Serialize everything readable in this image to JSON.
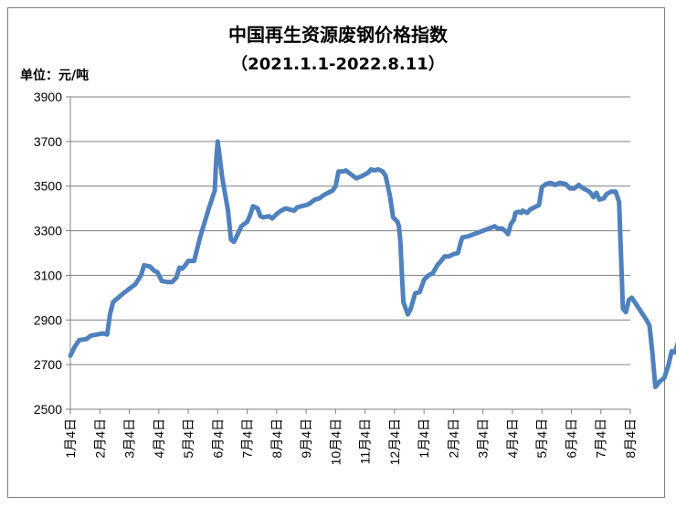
{
  "chart_data": {
    "type": "line",
    "title": "中国再生资源废钢价格指数",
    "subtitle": "（2021.1.1-2022.8.11）",
    "unit_label": "单位：元/吨",
    "xlabel": "",
    "ylabel": "",
    "ylim": [
      2500,
      3900
    ],
    "yticks": [
      "3900",
      "3700",
      "3500",
      "3300",
      "3100",
      "2900",
      "2700",
      "2500"
    ],
    "xticks": [
      "1月4日",
      "2月4日",
      "3月4日",
      "4月4日",
      "5月4日",
      "6月4日",
      "7月4日",
      "8月4日",
      "9月4日",
      "10月4日",
      "11月4日",
      "12月4日",
      "1月4日",
      "2月4日",
      "3月4日",
      "4月4日",
      "5月4日",
      "6月4日",
      "7月4日",
      "8月4日"
    ],
    "grid": true,
    "line_color": "#4f81bd",
    "series": [
      {
        "points": [
          [
            0.0,
            2740
          ],
          [
            0.15,
            2780
          ],
          [
            0.3,
            2810
          ],
          [
            0.55,
            2815
          ],
          [
            0.7,
            2830
          ],
          [
            0.9,
            2835
          ],
          [
            1.1,
            2840
          ],
          [
            1.25,
            2835
          ],
          [
            1.35,
            2930
          ],
          [
            1.45,
            2980
          ],
          [
            1.8,
            3020
          ],
          [
            2.2,
            3060
          ],
          [
            2.4,
            3100
          ],
          [
            2.5,
            3145
          ],
          [
            2.7,
            3140
          ],
          [
            2.85,
            3120
          ],
          [
            2.95,
            3115
          ],
          [
            3.1,
            3075
          ],
          [
            3.3,
            3070
          ],
          [
            3.45,
            3070
          ],
          [
            3.6,
            3090
          ],
          [
            3.7,
            3135
          ],
          [
            3.8,
            3130
          ],
          [
            3.9,
            3145
          ],
          [
            4.0,
            3165
          ],
          [
            4.2,
            3165
          ],
          [
            4.4,
            3270
          ],
          [
            4.7,
            3400
          ],
          [
            4.9,
            3480
          ],
          [
            4.95,
            3620
          ],
          [
            5.0,
            3700
          ],
          [
            5.05,
            3650
          ],
          [
            5.15,
            3540
          ],
          [
            5.35,
            3390
          ],
          [
            5.45,
            3260
          ],
          [
            5.55,
            3250
          ],
          [
            5.7,
            3290
          ],
          [
            5.8,
            3320
          ],
          [
            6.0,
            3340
          ],
          [
            6.1,
            3370
          ],
          [
            6.2,
            3410
          ],
          [
            6.35,
            3400
          ],
          [
            6.45,
            3365
          ],
          [
            6.55,
            3360
          ],
          [
            6.75,
            3365
          ],
          [
            6.85,
            3355
          ],
          [
            7.0,
            3375
          ],
          [
            7.15,
            3390
          ],
          [
            7.3,
            3400
          ],
          [
            7.45,
            3395
          ],
          [
            7.6,
            3390
          ],
          [
            7.7,
            3405
          ],
          [
            7.85,
            3410
          ],
          [
            8.0,
            3415
          ],
          [
            8.1,
            3420
          ],
          [
            8.3,
            3440
          ],
          [
            8.45,
            3445
          ],
          [
            8.6,
            3460
          ],
          [
            8.75,
            3470
          ],
          [
            8.9,
            3480
          ],
          [
            9.0,
            3500
          ],
          [
            9.1,
            3565
          ],
          [
            9.25,
            3565
          ],
          [
            9.35,
            3570
          ],
          [
            9.5,
            3555
          ],
          [
            9.7,
            3535
          ],
          [
            9.9,
            3545
          ],
          [
            10.1,
            3560
          ],
          [
            10.2,
            3575
          ],
          [
            10.3,
            3570
          ],
          [
            10.45,
            3575
          ],
          [
            10.6,
            3565
          ],
          [
            10.7,
            3545
          ],
          [
            10.85,
            3450
          ],
          [
            10.95,
            3360
          ],
          [
            11.1,
            3340
          ],
          [
            11.15,
            3320
          ],
          [
            11.2,
            3250
          ],
          [
            11.25,
            3100
          ],
          [
            11.3,
            2980
          ],
          [
            11.45,
            2925
          ],
          [
            11.55,
            2950
          ],
          [
            11.7,
            3020
          ],
          [
            11.85,
            3025
          ],
          [
            12.0,
            3080
          ],
          [
            12.15,
            3100
          ],
          [
            12.3,
            3110
          ],
          [
            12.45,
            3145
          ],
          [
            12.55,
            3160
          ],
          [
            12.7,
            3185
          ],
          [
            12.85,
            3185
          ],
          [
            13.0,
            3195
          ],
          [
            13.15,
            3200
          ],
          [
            13.25,
            3250
          ],
          [
            13.3,
            3270
          ],
          [
            13.5,
            3275
          ],
          [
            13.7,
            3285
          ],
          [
            13.9,
            3295
          ],
          [
            14.1,
            3305
          ],
          [
            14.3,
            3315
          ],
          [
            14.4,
            3320
          ],
          [
            14.5,
            3310
          ],
          [
            14.65,
            3310
          ],
          [
            14.75,
            3300
          ],
          [
            14.85,
            3285
          ],
          [
            14.95,
            3330
          ],
          [
            15.05,
            3350
          ],
          [
            15.1,
            3380
          ],
          [
            15.2,
            3385
          ],
          [
            15.3,
            3380
          ],
          [
            15.35,
            3390
          ],
          [
            15.5,
            3380
          ],
          [
            15.6,
            3395
          ],
          [
            15.75,
            3405
          ],
          [
            15.9,
            3415
          ],
          [
            16.0,
            3495
          ],
          [
            16.15,
            3510
          ],
          [
            16.3,
            3515
          ],
          [
            16.45,
            3505
          ],
          [
            16.6,
            3515
          ],
          [
            16.8,
            3510
          ],
          [
            16.95,
            3490
          ],
          [
            17.1,
            3490
          ],
          [
            17.25,
            3505
          ],
          [
            17.4,
            3490
          ],
          [
            17.55,
            3480
          ],
          [
            17.65,
            3470
          ],
          [
            17.75,
            3450
          ],
          [
            17.85,
            3470
          ],
          [
            17.95,
            3440
          ],
          [
            18.1,
            3445
          ],
          [
            18.2,
            3465
          ],
          [
            18.35,
            3475
          ],
          [
            18.5,
            3475
          ],
          [
            18.62,
            3430
          ],
          [
            18.68,
            3200
          ],
          [
            18.75,
            2950
          ],
          [
            18.85,
            2935
          ],
          [
            18.95,
            2990
          ],
          [
            19.05,
            3000
          ],
          [
            19.2,
            2970
          ],
          [
            19.4,
            2930
          ],
          [
            19.55,
            2900
          ],
          [
            19.65,
            2875
          ],
          [
            19.75,
            2750
          ],
          [
            19.85,
            2600
          ],
          [
            20.0,
            2625
          ],
          [
            20.15,
            2640
          ],
          [
            20.3,
            2700
          ],
          [
            20.4,
            2760
          ],
          [
            20.5,
            2755
          ],
          [
            20.55,
            2770
          ],
          [
            20.62,
            2800
          ]
        ]
      }
    ]
  }
}
